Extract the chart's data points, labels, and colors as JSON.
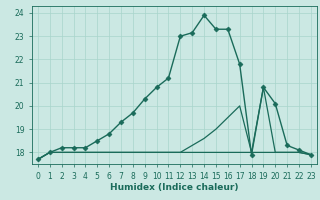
{
  "title": "",
  "xlabel": "Humidex (Indice chaleur)",
  "background_color": "#cbe8e3",
  "grid_color": "#a8d5cc",
  "line_color": "#1a6b5a",
  "xlim": [
    -0.5,
    23.5
  ],
  "ylim": [
    17.5,
    24.3
  ],
  "yticks": [
    18,
    19,
    20,
    21,
    22,
    23,
    24
  ],
  "xticks": [
    0,
    1,
    2,
    3,
    4,
    5,
    6,
    7,
    8,
    9,
    10,
    11,
    12,
    13,
    14,
    15,
    16,
    17,
    18,
    19,
    20,
    21,
    22,
    23
  ],
  "series": [
    {
      "x": [
        0,
        1,
        2,
        3,
        4,
        5,
        6,
        7,
        8,
        9,
        10,
        11,
        12,
        13,
        14,
        15,
        16,
        17,
        18,
        19,
        20,
        21,
        22,
        23
      ],
      "y": [
        17.7,
        18.0,
        18.2,
        18.2,
        18.2,
        18.5,
        18.8,
        19.3,
        19.7,
        20.3,
        20.8,
        21.2,
        23.0,
        23.15,
        23.9,
        23.3,
        23.3,
        21.8,
        17.9,
        20.8,
        20.1,
        18.3,
        18.1,
        17.9
      ],
      "marker": "D",
      "markersize": 2.5,
      "linewidth": 1.0
    },
    {
      "x": [
        0,
        1,
        2,
        3,
        4,
        5,
        6,
        7,
        8,
        9,
        10,
        11,
        12,
        13,
        14,
        15,
        16,
        17,
        18,
        19,
        20,
        21,
        22,
        23
      ],
      "y": [
        17.7,
        18.0,
        18.0,
        18.0,
        18.0,
        18.0,
        18.0,
        18.0,
        18.0,
        18.0,
        18.0,
        18.0,
        18.0,
        18.3,
        18.6,
        19.0,
        19.5,
        20.0,
        18.0,
        20.8,
        18.0,
        18.0,
        18.0,
        17.9
      ],
      "marker": null,
      "linewidth": 0.9
    },
    {
      "x": [
        0,
        1,
        2,
        3,
        4,
        5,
        6,
        7,
        8,
        9,
        10,
        11,
        12,
        13,
        14,
        15,
        16,
        17,
        18,
        19,
        20,
        21,
        22,
        23
      ],
      "y": [
        17.7,
        18.0,
        18.0,
        18.0,
        18.0,
        18.0,
        18.0,
        18.0,
        18.0,
        18.0,
        18.0,
        18.0,
        18.0,
        18.0,
        18.0,
        18.0,
        18.0,
        18.0,
        18.0,
        18.0,
        18.0,
        18.0,
        18.0,
        17.9
      ],
      "marker": null,
      "linewidth": 0.9
    }
  ]
}
